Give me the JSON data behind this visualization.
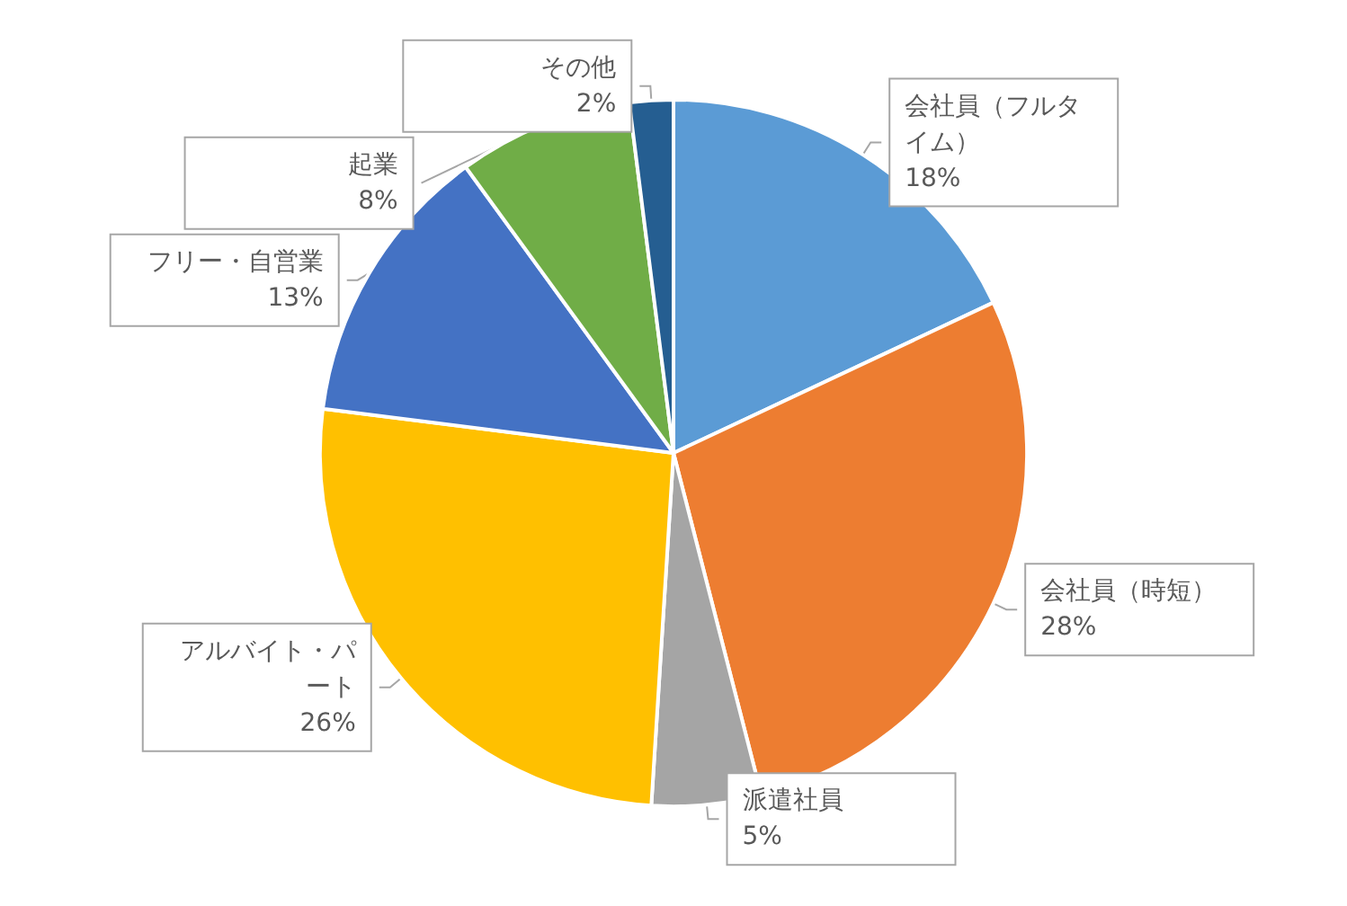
{
  "chart_data": {
    "type": "pie",
    "categories": [
      "会社員（フルタイム）",
      "会社員（時短）",
      "派遣社員",
      "アルバイト・パート",
      "フリー・自営業",
      "起業",
      "その他"
    ],
    "values": [
      18,
      28,
      5,
      26,
      13,
      8,
      2
    ],
    "value_labels": [
      "18%",
      "28%",
      "5%",
      "26%",
      "13%",
      "8%",
      "2%"
    ],
    "colors": [
      "#5b9bd5",
      "#ed7d31",
      "#a5a5a5",
      "#ffc000",
      "#4472c4",
      "#70ad47",
      "#255e91"
    ],
    "legend": false
  }
}
